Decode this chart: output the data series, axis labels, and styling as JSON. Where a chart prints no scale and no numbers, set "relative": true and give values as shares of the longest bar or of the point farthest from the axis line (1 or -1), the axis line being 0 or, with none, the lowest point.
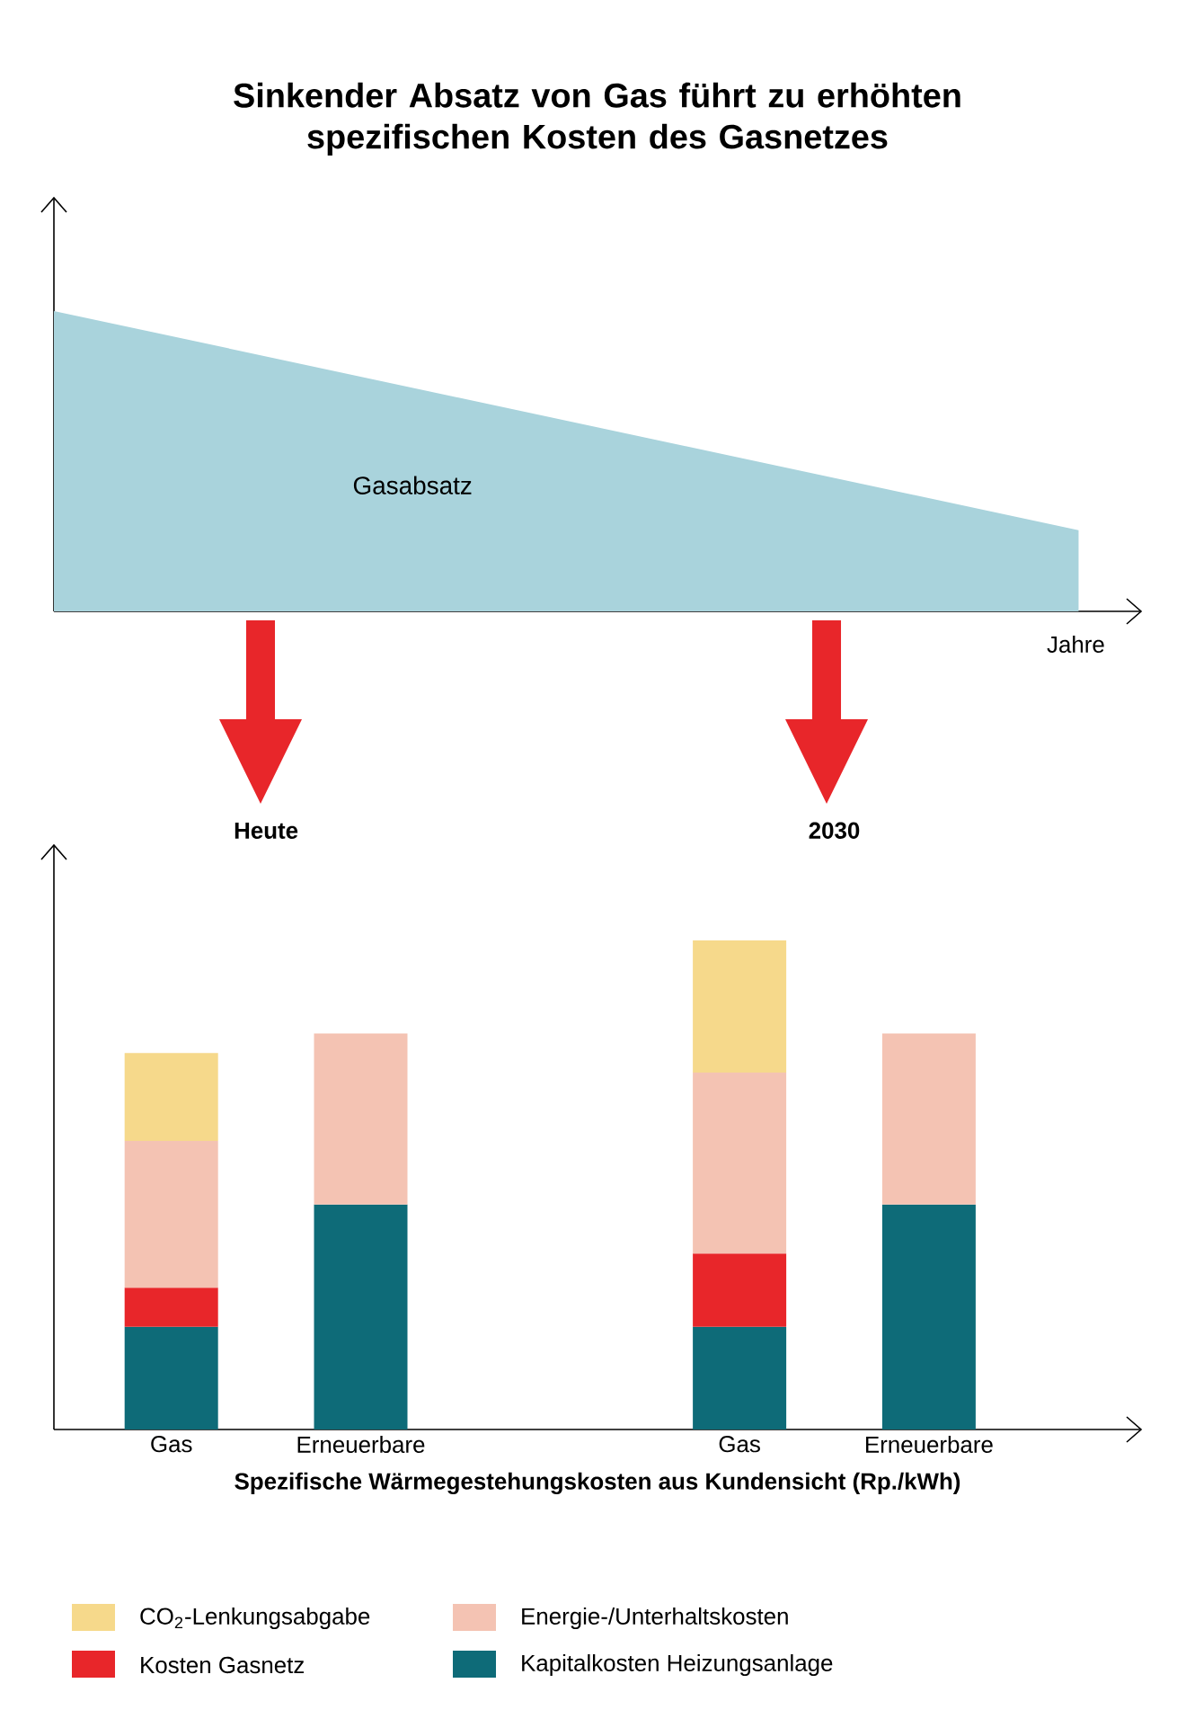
{
  "chart_data": [
    {
      "type": "area",
      "title": "Sinkender Absatz von Gas führt zu erhöhten spezifischen Kosten des Gasnetzes",
      "categories": [
        null,
        null
      ],
      "values": [
        1,
        0.27
      ],
      "relative": true,
      "color": "#a9d3dc",
      "xlabel": "Jahre",
      "annotations": [
        "Gasabsatz"
      ]
    },
    {
      "type": "bar",
      "stacked": true,
      "relative": true,
      "categories": [
        "Gas",
        "Erneuerbare",
        null,
        "Gas",
        "Erneuerbare"
      ],
      "xlabel": "Spezifische Wärmegestehungskosten aus Kundensicht (Rp./kWh)",
      "annotations": [
        "Heute",
        "2030"
      ],
      "legend": "bottom",
      "series": [
        {
          "name": "Kapitalkosten Heizungsanlage",
          "color": "#0e6b78",
          "values": [
            0.21,
            0.46,
            null,
            0.21,
            0.46
          ]
        },
        {
          "name": "Kosten Gasnetz",
          "color": "#e8262a",
          "values": [
            0.08,
            0,
            null,
            0.15,
            0
          ]
        },
        {
          "name": "Energie-/Unterhaltskosten",
          "color": "#f4c3b3",
          "values": [
            0.3,
            0.35,
            null,
            0.37,
            0.35
          ]
        },
        {
          "name": "CO$_{2}$-Lenkungsabgabe",
          "color": "#f6d98b",
          "values": [
            0.18,
            0,
            null,
            0.27,
            0
          ]
        }
      ]
    }
  ]
}
